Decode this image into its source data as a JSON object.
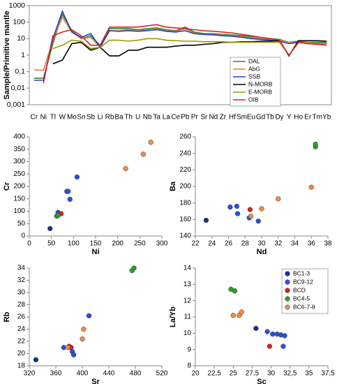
{
  "chart_data": [
    {
      "type": "line",
      "log_y": true,
      "ylabel": "Sample/Primitive mantle",
      "categories": [
        "Cr",
        "Ni",
        "Tl",
        "W",
        "Mo",
        "Sn",
        "Sb",
        "Li",
        "Rb",
        "Ba",
        "Th",
        "U",
        "Nb",
        "Ta",
        "La",
        "Ce",
        "Pb",
        "Pr",
        "Sr",
        "Nd",
        "Zr",
        "Hf",
        "Sm",
        "Eu",
        "Gd",
        "Tb",
        "Dy",
        "Y",
        "Ho",
        "Er",
        "Tm",
        "Yb"
      ],
      "ylim": [
        0.001,
        1000
      ],
      "yticks": [
        {
          "value": 0.001,
          "label": "0,001"
        },
        {
          "value": 0.01,
          "label": "0,01"
        },
        {
          "value": 0.1,
          "label": "0,1"
        },
        1,
        10,
        100,
        1000
      ],
      "legend": "right",
      "series": [
        {
          "name": "DAL",
          "color": "#2e8b2e",
          "values": [
            0.04,
            0.04,
            5,
            300,
            30,
            10,
            15,
            4,
            40,
            40,
            40,
            35,
            40,
            45,
            35,
            30,
            50,
            25,
            20,
            20,
            18,
            17,
            15,
            13,
            12,
            10,
            9,
            6,
            7,
            6,
            6,
            6
          ]
        },
        {
          "name": "AbG",
          "color": "#e08030",
          "values": [
            0.13,
            0.12,
            8,
            200,
            25,
            10,
            12,
            3,
            30,
            30,
            35,
            30,
            35,
            40,
            30,
            27,
            40,
            22,
            18,
            18,
            16,
            15,
            13,
            11,
            10,
            9,
            8,
            6,
            6,
            6,
            5,
            5
          ]
        },
        {
          "name": "SSB",
          "color": "#2040d0",
          "values": [
            0.03,
            0.03,
            10,
            450,
            25,
            12,
            20,
            3,
            30,
            28,
            30,
            28,
            30,
            35,
            28,
            25,
            30,
            20,
            18,
            17,
            15,
            14,
            12,
            10,
            9,
            8,
            7,
            5,
            6,
            5,
            5,
            5
          ]
        },
        {
          "name": "N-MORB",
          "color": "#000000",
          "values": [
            null,
            null,
            0.3,
            0.5,
            5,
            6,
            2,
            3,
            0.9,
            0.9,
            2,
            2,
            3,
            3,
            3,
            3.5,
            4,
            4,
            4.5,
            5,
            6,
            6,
            6.5,
            6.5,
            7,
            7,
            7.5,
            0.9,
            7.5,
            7.5,
            7.5,
            7
          ]
        },
        {
          "name": "E-MORB",
          "color": "#999900",
          "values": [
            null,
            null,
            2.5,
            4,
            8,
            7,
            2.5,
            3,
            8,
            8,
            7,
            8,
            10,
            10,
            8,
            7.5,
            7,
            7,
            6.5,
            6.5,
            6.5,
            6,
            6,
            6,
            6,
            6,
            6,
            1,
            5.5,
            5.5,
            5,
            5
          ]
        },
        {
          "name": "OIB",
          "color": "#e02020",
          "values": [
            null,
            0.02,
            15,
            25,
            35,
            15,
            4,
            4,
            50,
            50,
            50,
            50,
            60,
            70,
            50,
            45,
            40,
            35,
            30,
            28,
            25,
            22,
            18,
            15,
            12,
            10,
            8,
            1,
            6,
            5,
            4.5,
            4
          ]
        }
      ]
    },
    {
      "type": "scatter",
      "xlabel": "Ni",
      "ylabel": "Cr",
      "xlim": [
        0,
        300
      ],
      "xticks": [
        0,
        50,
        100,
        150,
        200,
        250,
        300
      ],
      "ylim": [
        0,
        400
      ],
      "yticks": [
        0,
        50,
        100,
        150,
        200,
        250,
        300,
        350,
        400
      ],
      "series": [
        {
          "color": "#1a2f9a",
          "x": [
            47
          ],
          "values": [
            30
          ]
        },
        {
          "color": "#2850e0",
          "x": [
            65,
            85,
            88,
            92,
            108
          ],
          "values": [
            95,
            180,
            180,
            148,
            238
          ]
        },
        {
          "color": "#e02020",
          "x": [
            72
          ],
          "values": [
            90
          ]
        },
        {
          "color": "#2ea02e",
          "x": [
            62,
            65
          ],
          "values": [
            80,
            83
          ]
        },
        {
          "color": "#ef8c4a",
          "x": [
            218,
            258,
            275
          ],
          "values": [
            272,
            330,
            378
          ]
        }
      ]
    },
    {
      "type": "scatter",
      "xlabel": "Nd",
      "ylabel": "Ba",
      "xlim": [
        22,
        38
      ],
      "xticks": [
        22,
        24,
        26,
        28,
        30,
        32,
        34,
        36,
        38
      ],
      "ylim": [
        140,
        260
      ],
      "yticks": [
        140,
        160,
        180,
        200,
        220,
        240,
        260
      ],
      "series": [
        {
          "color": "#1a2f9a",
          "x": [
            23.3
          ],
          "values": [
            159
          ]
        },
        {
          "color": "#2850e0",
          "x": [
            26.2,
            27,
            27.1,
            28.5,
            29.6
          ],
          "values": [
            175,
            176,
            167,
            162,
            158
          ]
        },
        {
          "color": "#e02020",
          "x": [
            28.6
          ],
          "values": [
            172
          ]
        },
        {
          "color": "#2ea02e",
          "x": [
            36.5,
            36.5
          ],
          "values": [
            248,
            251
          ]
        },
        {
          "color": "#ef8c4a",
          "x": [
            28.7,
            30,
            32,
            36
          ],
          "values": [
            164,
            173,
            185,
            199
          ]
        }
      ]
    },
    {
      "type": "scatter",
      "xlabel": "Sr",
      "ylabel": "Rb",
      "xlim": [
        320,
        520
      ],
      "xticks": [
        320,
        360,
        400,
        440,
        480,
        520
      ],
      "ylim": [
        18,
        34
      ],
      "yticks": [
        18,
        20,
        22,
        24,
        26,
        28,
        30,
        32,
        34
      ],
      "series": [
        {
          "color": "#1a2f9a",
          "x": [
            330
          ],
          "values": [
            19
          ]
        },
        {
          "color": "#2850e0",
          "x": [
            372,
            383,
            385,
            387,
            410
          ],
          "values": [
            21,
            21,
            20.3,
            19.8,
            26.2
          ]
        },
        {
          "color": "#e02020",
          "x": [
            380,
            382
          ],
          "values": [
            21.2,
            21
          ]
        },
        {
          "color": "#2ea02e",
          "x": [
            475,
            478
          ],
          "values": [
            33.6,
            34
          ]
        },
        {
          "color": "#ef8c4a",
          "x": [
            378,
            400,
            402
          ],
          "values": [
            21,
            22.4,
            24
          ]
        }
      ]
    },
    {
      "type": "scatter",
      "xlabel": "Sc",
      "ylabel": "La/Yb",
      "xlim": [
        20,
        37.5
      ],
      "xticks": [
        20,
        {
          "value": 22.5,
          "label": "22,5"
        },
        25,
        {
          "value": 27.5,
          "label": "27,5"
        },
        30,
        {
          "value": 32.5,
          "label": "32,5"
        },
        35,
        {
          "value": 37.5,
          "label": "37,5"
        }
      ],
      "ylim": [
        8,
        14
      ],
      "yticks": [
        8,
        9,
        10,
        11,
        12,
        13,
        14
      ],
      "legend": "upper right",
      "series": [
        {
          "name": "BC1-3",
          "color": "#1a2f9a",
          "x": [
            28
          ],
          "values": [
            10.3
          ]
        },
        {
          "name": "BC9-12",
          "color": "#2850e0",
          "x": [
            29.5,
            30.2,
            30.8,
            31.3,
            31.8,
            31.6
          ],
          "values": [
            10.1,
            9.95,
            9.95,
            9.9,
            9.85,
            9.2
          ]
        },
        {
          "name": "BCD",
          "color": "#e02020",
          "x": [
            29.8
          ],
          "values": [
            9.2
          ]
        },
        {
          "name": "BC4-5",
          "color": "#2ea02e",
          "x": [
            24.7,
            25.2
          ],
          "values": [
            12.7,
            12.6
          ]
        },
        {
          "name": "BC6-7-8",
          "color": "#ef8c4a",
          "x": [
            25,
            25.8,
            26.1
          ],
          "values": [
            11.1,
            11.1,
            11.3
          ]
        }
      ]
    }
  ]
}
